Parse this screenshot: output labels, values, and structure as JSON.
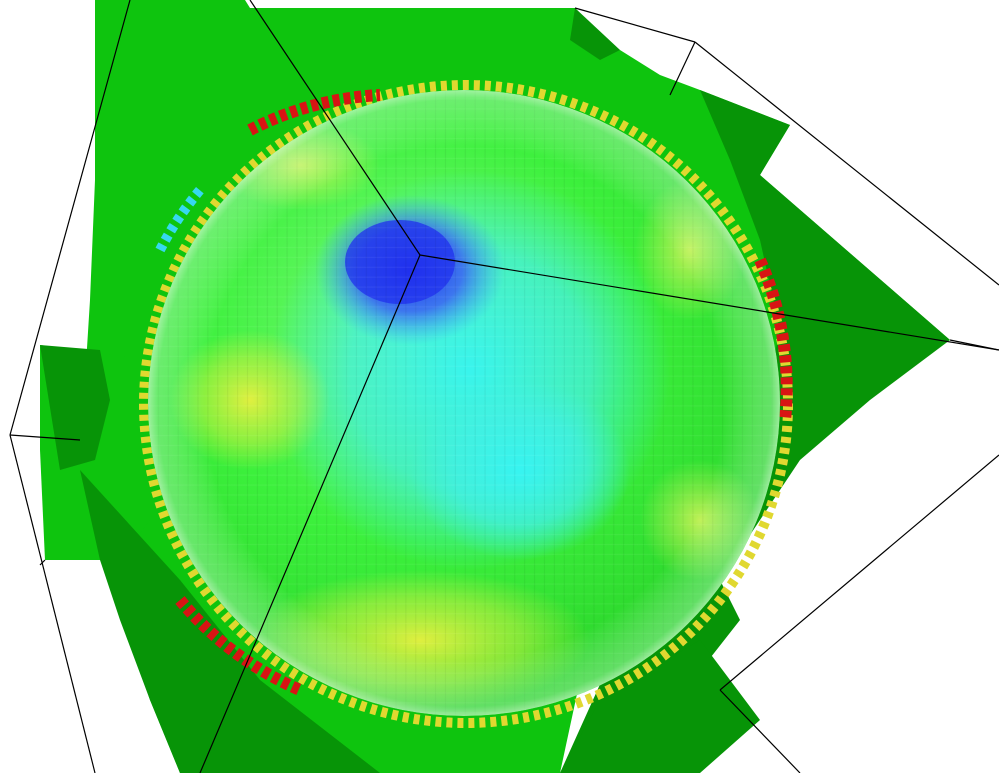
{
  "scene": {
    "background": "#ffffff",
    "plane_color": "#0ec40e",
    "plane_shadow_color": "#079407",
    "edge_color": "#000000",
    "colormap": {
      "low": "#2a3af0",
      "mid_low": "#36f2f2",
      "mid": "#2cf02c",
      "mid_high": "#e8f040",
      "high": "#d81414"
    }
  }
}
